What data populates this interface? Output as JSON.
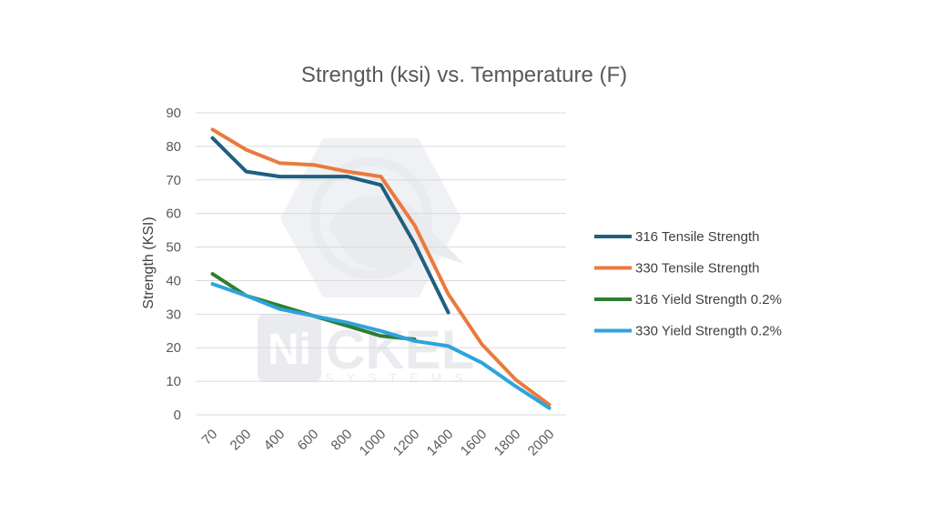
{
  "chart_data": {
    "type": "line",
    "title": "Strength (ksi) vs. Temperature (F)",
    "xlabel": "",
    "ylabel": "Strength (KSI)",
    "ylim": [
      0,
      90
    ],
    "yticks": [
      0,
      10,
      20,
      30,
      40,
      50,
      60,
      70,
      80,
      90
    ],
    "categories": [
      "70",
      "200",
      "400",
      "600",
      "800",
      "1000",
      "1200",
      "1400",
      "1600",
      "1800",
      "2000"
    ],
    "grid": true,
    "legend_position": "right",
    "series": [
      {
        "name": "316 Tensile Strength",
        "color": "#1f5f80",
        "values": [
          82.5,
          72.5,
          71,
          71,
          71,
          68.5,
          51,
          30.5,
          null,
          null,
          null
        ]
      },
      {
        "name": "330 Tensile Strength",
        "color": "#ea7a3c",
        "values": [
          85,
          79,
          75,
          74.5,
          72.5,
          71,
          56.5,
          36,
          21,
          10.5,
          3
        ]
      },
      {
        "name": "316 Yield Strength 0.2%",
        "color": "#2e7d32",
        "values": [
          42,
          35.5,
          32.5,
          29.5,
          26.5,
          23.5,
          22.5,
          null,
          null,
          null,
          null
        ]
      },
      {
        "name": "330 Yield Strength 0.2%",
        "color": "#2ea3dc",
        "values": [
          39,
          35.5,
          31.5,
          29.5,
          27.5,
          25,
          22,
          20.5,
          15.5,
          8.5,
          2
        ]
      }
    ]
  },
  "watermark": {
    "brand_prefix": "Ni",
    "brand_suffix": "CKEL",
    "tagline": "SYSTEMS",
    "icon": "bull-logo-icon"
  }
}
